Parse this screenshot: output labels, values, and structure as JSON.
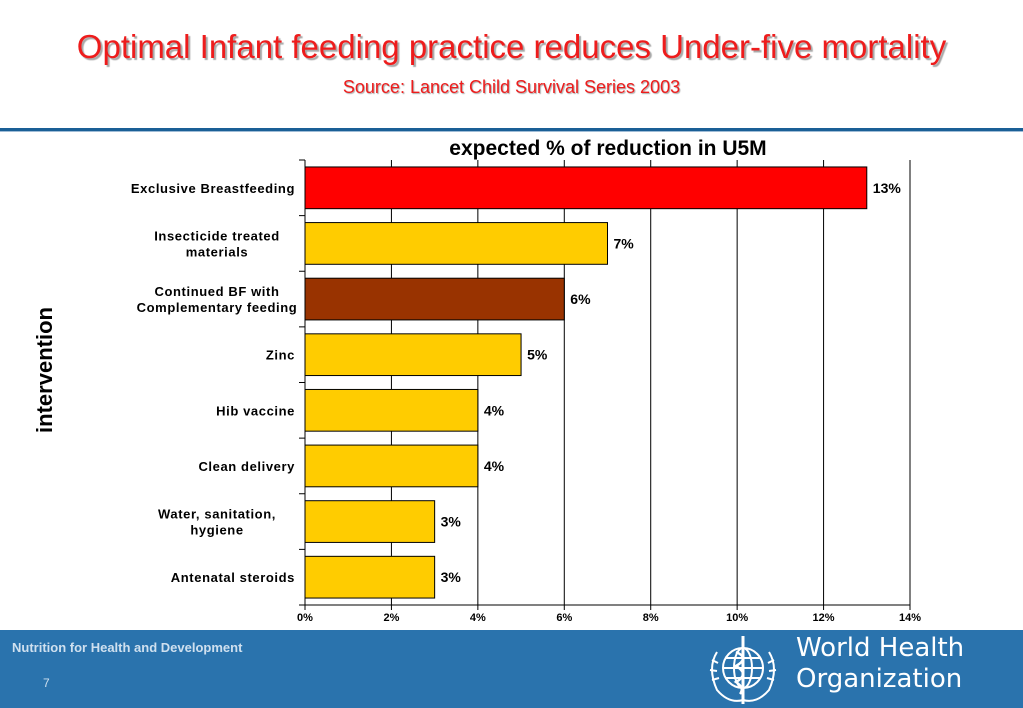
{
  "header": {
    "title": "Optimal Infant feeding practice reduces Under-five mortality",
    "subtitle": "Source: Lancet Child Survival Series 2003"
  },
  "chart_data": {
    "type": "bar",
    "orientation": "horizontal",
    "title": "expected % of reduction in U5M",
    "ylabel": "intervention",
    "xlabel": "",
    "categories": [
      "Exclusive Breastfeeding",
      "Insecticide treated materials",
      "Continued BF with Complementary feeding",
      "Zinc",
      "Hib vaccine",
      "Clean delivery",
      "Water, sanitation, hygiene",
      "Antenatal steroids"
    ],
    "category_lines": [
      [
        "Exclusive Breastfeeding"
      ],
      [
        "Insecticide treated",
        "materials"
      ],
      [
        "Continued BF with",
        "Complementary feeding"
      ],
      [
        "Zinc"
      ],
      [
        "Hib vaccine"
      ],
      [
        "Clean delivery"
      ],
      [
        "Water, sanitation,",
        "hygiene"
      ],
      [
        "Antenatal steroids"
      ]
    ],
    "values": [
      13,
      7,
      6,
      5,
      4,
      4,
      3,
      3
    ],
    "data_labels": [
      "13%",
      "7%",
      "6%",
      "5%",
      "4%",
      "4%",
      "3%",
      "3%"
    ],
    "bar_colors": [
      "#ff0000",
      "#ffcc00",
      "#993300",
      "#ffcc00",
      "#ffcc00",
      "#ffcc00",
      "#ffcc00",
      "#ffcc00"
    ],
    "xlim": [
      0,
      14
    ],
    "xticks": [
      0,
      2,
      4,
      6,
      8,
      10,
      12,
      14
    ],
    "xtick_labels": [
      "0%",
      "2%",
      "4%",
      "6%",
      "8%",
      "10%",
      "12%",
      "14%"
    ],
    "grid": "vertical",
    "legend": "none"
  },
  "footer": {
    "text": "Nutrition for Health and Development",
    "page_number": "7",
    "org_name_line1": "World Health",
    "org_name_line2": "Organization",
    "logo_icon": "who-emblem-icon"
  },
  "colors": {
    "title": "#ee1c1c",
    "footer_bg": "#2a73ad",
    "rule": "#1a5f96"
  }
}
